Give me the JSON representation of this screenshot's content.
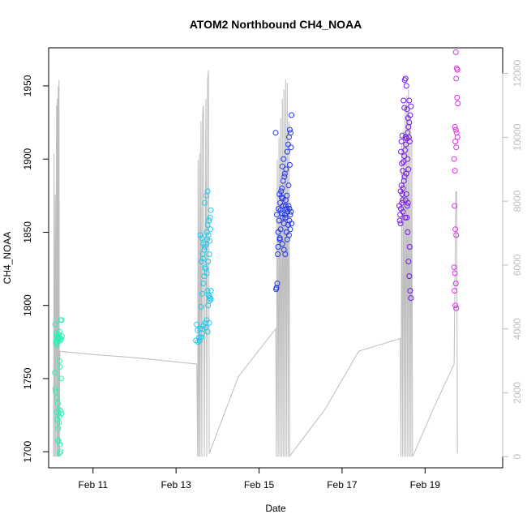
{
  "chart_data": {
    "type": "scatter",
    "title": "ATOM2 Northbound CH4_NOAA",
    "xlabel": "Date",
    "ylabel": "CH4_NOAA",
    "x_ticks": [
      {
        "label": "Feb 11",
        "day": 11
      },
      {
        "label": "Feb 13",
        "day": 13
      },
      {
        "label": "Feb 15",
        "day": 15
      },
      {
        "label": "Feb 17",
        "day": 17
      },
      {
        "label": "Feb 19",
        "day": 19
      }
    ],
    "xlim": [
      9.93,
      20.87
    ],
    "ylim": [
      1689,
      1976
    ],
    "y_ticks": [
      1700,
      1750,
      1800,
      1850,
      1900,
      1950
    ],
    "y2_label": "",
    "y2lim": [
      -350,
      12800
    ],
    "y2_ticks": [
      0,
      2000,
      4000,
      6000,
      8000,
      10000,
      12000
    ],
    "grid": false,
    "legend": "none",
    "colors": {
      "series1": "#2ef0b8",
      "series2": "#1ec8f0",
      "series3": "#1f34ee",
      "series4": "#7618e8",
      "series5": "#e02cf0",
      "altitude_line": "#bdbdbd"
    },
    "series": [
      {
        "color": "#2ef0b8",
        "points": [
          [
            10.09,
            1787
          ],
          [
            10.11,
            1781
          ],
          [
            10.13,
            1779
          ],
          [
            10.15,
            1778
          ],
          [
            10.12,
            1776
          ],
          [
            10.14,
            1775
          ],
          [
            10.16,
            1777
          ],
          [
            10.18,
            1780
          ],
          [
            10.1,
            1774
          ],
          [
            10.13,
            1773
          ],
          [
            10.17,
            1779
          ],
          [
            10.2,
            1778
          ],
          [
            10.22,
            1790
          ],
          [
            10.24,
            1790
          ],
          [
            10.19,
            1782
          ],
          [
            10.21,
            1776
          ],
          [
            10.23,
            1777
          ],
          [
            10.25,
            1779
          ],
          [
            10.11,
            1776
          ],
          [
            10.15,
            1778
          ],
          [
            10.18,
            1777
          ],
          [
            10.08,
            1754
          ],
          [
            10.19,
            1762
          ],
          [
            10.2,
            1758
          ],
          [
            10.23,
            1750
          ],
          [
            10.09,
            1743
          ],
          [
            10.1,
            1741
          ],
          [
            10.13,
            1737
          ],
          [
            10.15,
            1733
          ],
          [
            10.17,
            1729
          ],
          [
            10.12,
            1727
          ],
          [
            10.16,
            1726
          ],
          [
            10.19,
            1724
          ],
          [
            10.22,
            1728
          ],
          [
            10.24,
            1726
          ],
          [
            10.14,
            1722
          ],
          [
            10.18,
            1720
          ],
          [
            10.16,
            1716
          ],
          [
            10.15,
            1708
          ],
          [
            10.17,
            1707
          ],
          [
            10.2,
            1705
          ],
          [
            10.22,
            1700
          ],
          [
            10.19,
            1699
          ]
        ]
      },
      {
        "color": "#1ec8f0",
        "points": [
          [
            13.5,
            1787
          ],
          [
            13.52,
            1783
          ],
          [
            13.55,
            1778
          ],
          [
            13.48,
            1776
          ],
          [
            13.53,
            1775
          ],
          [
            13.57,
            1776
          ],
          [
            13.6,
            1778
          ],
          [
            13.62,
            1781
          ],
          [
            13.64,
            1784
          ],
          [
            13.66,
            1786
          ],
          [
            13.7,
            1788
          ],
          [
            13.74,
            1790
          ],
          [
            13.58,
            1784
          ],
          [
            13.72,
            1785
          ],
          [
            13.76,
            1782
          ],
          [
            13.8,
            1788
          ],
          [
            13.82,
            1805
          ],
          [
            13.84,
            1810
          ],
          [
            13.8,
            1803
          ],
          [
            13.77,
            1800
          ],
          [
            13.6,
            1799
          ],
          [
            13.63,
            1808
          ],
          [
            13.66,
            1815
          ],
          [
            13.68,
            1820
          ],
          [
            13.71,
            1825
          ],
          [
            13.61,
            1830
          ],
          [
            13.64,
            1835
          ],
          [
            13.68,
            1838
          ],
          [
            13.72,
            1842
          ],
          [
            13.75,
            1845
          ],
          [
            13.78,
            1848
          ],
          [
            13.81,
            1844
          ],
          [
            13.59,
            1848
          ],
          [
            13.62,
            1846
          ],
          [
            13.66,
            1842
          ],
          [
            13.7,
            1840
          ],
          [
            13.74,
            1850
          ],
          [
            13.76,
            1855
          ],
          [
            13.79,
            1858
          ],
          [
            13.82,
            1860
          ],
          [
            13.84,
            1865
          ],
          [
            13.69,
            1870
          ],
          [
            13.73,
            1875
          ],
          [
            13.76,
            1878
          ],
          [
            13.79,
            1858
          ],
          [
            13.83,
            1852
          ],
          [
            13.65,
            1832
          ],
          [
            13.7,
            1826
          ],
          [
            13.74,
            1822
          ],
          [
            13.77,
            1830
          ],
          [
            13.8,
            1835
          ],
          [
            13.78,
            1807
          ],
          [
            13.81,
            1806
          ],
          [
            13.84,
            1804
          ],
          [
            13.76,
            1810
          ]
        ]
      },
      {
        "color": "#1f34ee",
        "points": [
          [
            15.4,
            1918
          ],
          [
            15.42,
            1812
          ],
          [
            15.44,
            1815
          ],
          [
            15.45,
            1835
          ],
          [
            15.46,
            1840
          ],
          [
            15.5,
            1846
          ],
          [
            15.52,
            1852
          ],
          [
            15.48,
            1858
          ],
          [
            15.43,
            1862
          ],
          [
            15.47,
            1866
          ],
          [
            15.51,
            1870
          ],
          [
            15.54,
            1874
          ],
          [
            15.57,
            1860
          ],
          [
            15.6,
            1856
          ],
          [
            15.62,
            1862
          ],
          [
            15.64,
            1868
          ],
          [
            15.66,
            1866
          ],
          [
            15.69,
            1864
          ],
          [
            15.71,
            1868
          ],
          [
            15.73,
            1866
          ],
          [
            15.75,
            1862
          ],
          [
            15.77,
            1864
          ],
          [
            15.55,
            1880
          ],
          [
            15.58,
            1885
          ],
          [
            15.61,
            1888
          ],
          [
            15.56,
            1895
          ],
          [
            15.59,
            1900
          ],
          [
            15.62,
            1890
          ],
          [
            15.65,
            1893
          ],
          [
            15.68,
            1905
          ],
          [
            15.7,
            1910
          ],
          [
            15.72,
            1915
          ],
          [
            15.74,
            1920
          ],
          [
            15.76,
            1918
          ],
          [
            15.78,
            1930
          ],
          [
            15.53,
            1878
          ],
          [
            15.49,
            1876
          ],
          [
            15.46,
            1850
          ],
          [
            15.5,
            1845
          ],
          [
            15.56,
            1842
          ],
          [
            15.6,
            1838
          ],
          [
            15.63,
            1835
          ],
          [
            15.66,
            1850
          ],
          [
            15.7,
            1855
          ],
          [
            15.73,
            1858
          ],
          [
            15.68,
            1845
          ],
          [
            15.72,
            1848
          ],
          [
            15.75,
            1852
          ],
          [
            15.78,
            1856
          ],
          [
            15.58,
            1868
          ],
          [
            15.64,
            1872
          ],
          [
            15.67,
            1875
          ],
          [
            15.52,
            1865
          ],
          [
            15.57,
            1873
          ],
          [
            15.71,
            1882
          ],
          [
            15.74,
            1896
          ],
          [
            15.77,
            1908
          ],
          [
            15.41,
            1811
          ],
          [
            15.55,
            1863
          ],
          [
            15.63,
            1860
          ]
        ]
      },
      {
        "color": "#7618e8",
        "points": [
          [
            18.38,
            1868
          ],
          [
            18.4,
            1862
          ],
          [
            18.42,
            1866
          ],
          [
            18.44,
            1870
          ],
          [
            18.46,
            1872
          ],
          [
            18.41,
            1878
          ],
          [
            18.43,
            1882
          ],
          [
            18.45,
            1876
          ],
          [
            18.47,
            1880
          ],
          [
            18.49,
            1885
          ],
          [
            18.51,
            1888
          ],
          [
            18.53,
            1872
          ],
          [
            18.55,
            1876
          ],
          [
            18.57,
            1868
          ],
          [
            18.59,
            1870
          ],
          [
            18.48,
            1898
          ],
          [
            18.5,
            1902
          ],
          [
            18.52,
            1906
          ],
          [
            18.54,
            1910
          ],
          [
            18.56,
            1914
          ],
          [
            18.58,
            1918
          ],
          [
            18.6,
            1922
          ],
          [
            18.62,
            1925
          ],
          [
            18.64,
            1930
          ],
          [
            18.61,
            1915
          ],
          [
            18.63,
            1912
          ],
          [
            18.58,
            1900
          ],
          [
            18.6,
            1893
          ],
          [
            18.55,
            1890
          ],
          [
            18.53,
            1915
          ],
          [
            18.45,
            1916
          ],
          [
            18.43,
            1912
          ],
          [
            18.42,
            1905
          ],
          [
            18.44,
            1897
          ],
          [
            18.46,
            1892
          ],
          [
            18.51,
            1954
          ],
          [
            18.53,
            1955
          ],
          [
            18.55,
            1950
          ],
          [
            18.57,
            1934
          ],
          [
            18.59,
            1928
          ],
          [
            18.62,
            1940
          ],
          [
            18.66,
            1936
          ],
          [
            18.48,
            1940
          ],
          [
            18.5,
            1935
          ],
          [
            18.56,
            1860
          ],
          [
            18.58,
            1850
          ],
          [
            18.6,
            1830
          ],
          [
            18.62,
            1820
          ],
          [
            18.64,
            1810
          ],
          [
            18.66,
            1805
          ],
          [
            18.63,
            1840
          ],
          [
            18.52,
            1860
          ],
          [
            18.47,
            1864
          ],
          [
            18.39,
            1858
          ],
          [
            18.41,
            1856
          ]
        ]
      },
      {
        "color": "#e02cf0",
        "points": [
          [
            19.74,
            1973
          ],
          [
            19.76,
            1962
          ],
          [
            19.78,
            1961
          ],
          [
            19.75,
            1955
          ],
          [
            19.77,
            1942
          ],
          [
            19.79,
            1938
          ],
          [
            19.72,
            1922
          ],
          [
            19.74,
            1920
          ],
          [
            19.76,
            1918
          ],
          [
            19.78,
            1915
          ],
          [
            19.73,
            1912
          ],
          [
            19.75,
            1908
          ],
          [
            19.7,
            1900
          ],
          [
            19.72,
            1892
          ],
          [
            19.71,
            1868
          ],
          [
            19.73,
            1852
          ],
          [
            19.75,
            1848
          ],
          [
            19.7,
            1826
          ],
          [
            19.72,
            1822
          ],
          [
            19.74,
            1815
          ],
          [
            19.71,
            1810
          ],
          [
            19.73,
            1800
          ],
          [
            19.75,
            1798
          ]
        ]
      }
    ],
    "altitude_line": {
      "color": "#bdbdbd",
      "points": [
        [
          10.05,
          0
        ],
        [
          10.06,
          9500
        ],
        [
          10.07,
          0
        ],
        [
          10.09,
          8200
        ],
        [
          10.1,
          0
        ],
        [
          10.12,
          11000
        ],
        [
          10.13,
          0
        ],
        [
          10.14,
          11200
        ],
        [
          10.15,
          0
        ],
        [
          10.16,
          11600
        ],
        [
          10.17,
          0
        ],
        [
          10.18,
          11800
        ],
        [
          10.19,
          0
        ],
        [
          10.2,
          3300
        ],
        [
          11.0,
          3200
        ],
        [
          12.0,
          3100
        ],
        [
          13.5,
          2900
        ],
        [
          13.52,
          0
        ],
        [
          13.53,
          9300
        ],
        [
          13.55,
          0
        ],
        [
          13.57,
          9500
        ],
        [
          13.58,
          0
        ],
        [
          13.6,
          10500
        ],
        [
          13.62,
          0
        ],
        [
          13.64,
          10700
        ],
        [
          13.66,
          11000
        ],
        [
          13.68,
          0
        ],
        [
          13.72,
          11200
        ],
        [
          13.74,
          0
        ],
        [
          13.76,
          11800
        ],
        [
          13.78,
          12100
        ],
        [
          13.8,
          100
        ],
        [
          14.5,
          2500
        ],
        [
          15.4,
          4000
        ],
        [
          15.42,
          0
        ],
        [
          15.44,
          9300
        ],
        [
          15.46,
          0
        ],
        [
          15.48,
          10000
        ],
        [
          15.5,
          0
        ],
        [
          15.52,
          10600
        ],
        [
          15.54,
          0
        ],
        [
          15.56,
          11200
        ],
        [
          15.58,
          0
        ],
        [
          15.6,
          11500
        ],
        [
          15.62,
          0
        ],
        [
          15.64,
          11800
        ],
        [
          15.66,
          0
        ],
        [
          15.68,
          11700
        ],
        [
          15.7,
          0
        ],
        [
          15.72,
          10500
        ],
        [
          15.74,
          0
        ],
        [
          15.76,
          50
        ],
        [
          16.6,
          1500
        ],
        [
          17.4,
          3300
        ],
        [
          18.4,
          3700
        ],
        [
          18.42,
          0
        ],
        [
          18.44,
          9800
        ],
        [
          18.46,
          0
        ],
        [
          18.48,
          10200
        ],
        [
          18.5,
          0
        ],
        [
          18.52,
          11000
        ],
        [
          18.54,
          0
        ],
        [
          18.56,
          11300
        ],
        [
          18.58,
          0
        ],
        [
          18.6,
          11500
        ],
        [
          18.62,
          0
        ],
        [
          18.64,
          10500
        ],
        [
          18.66,
          0
        ],
        [
          18.68,
          10000
        ],
        [
          18.7,
          0
        ],
        [
          18.72,
          50
        ],
        [
          19.2,
          1500
        ],
        [
          19.7,
          2900
        ],
        [
          19.74,
          8300
        ],
        [
          19.76,
          8300
        ],
        [
          19.78,
          100
        ]
      ]
    }
  }
}
